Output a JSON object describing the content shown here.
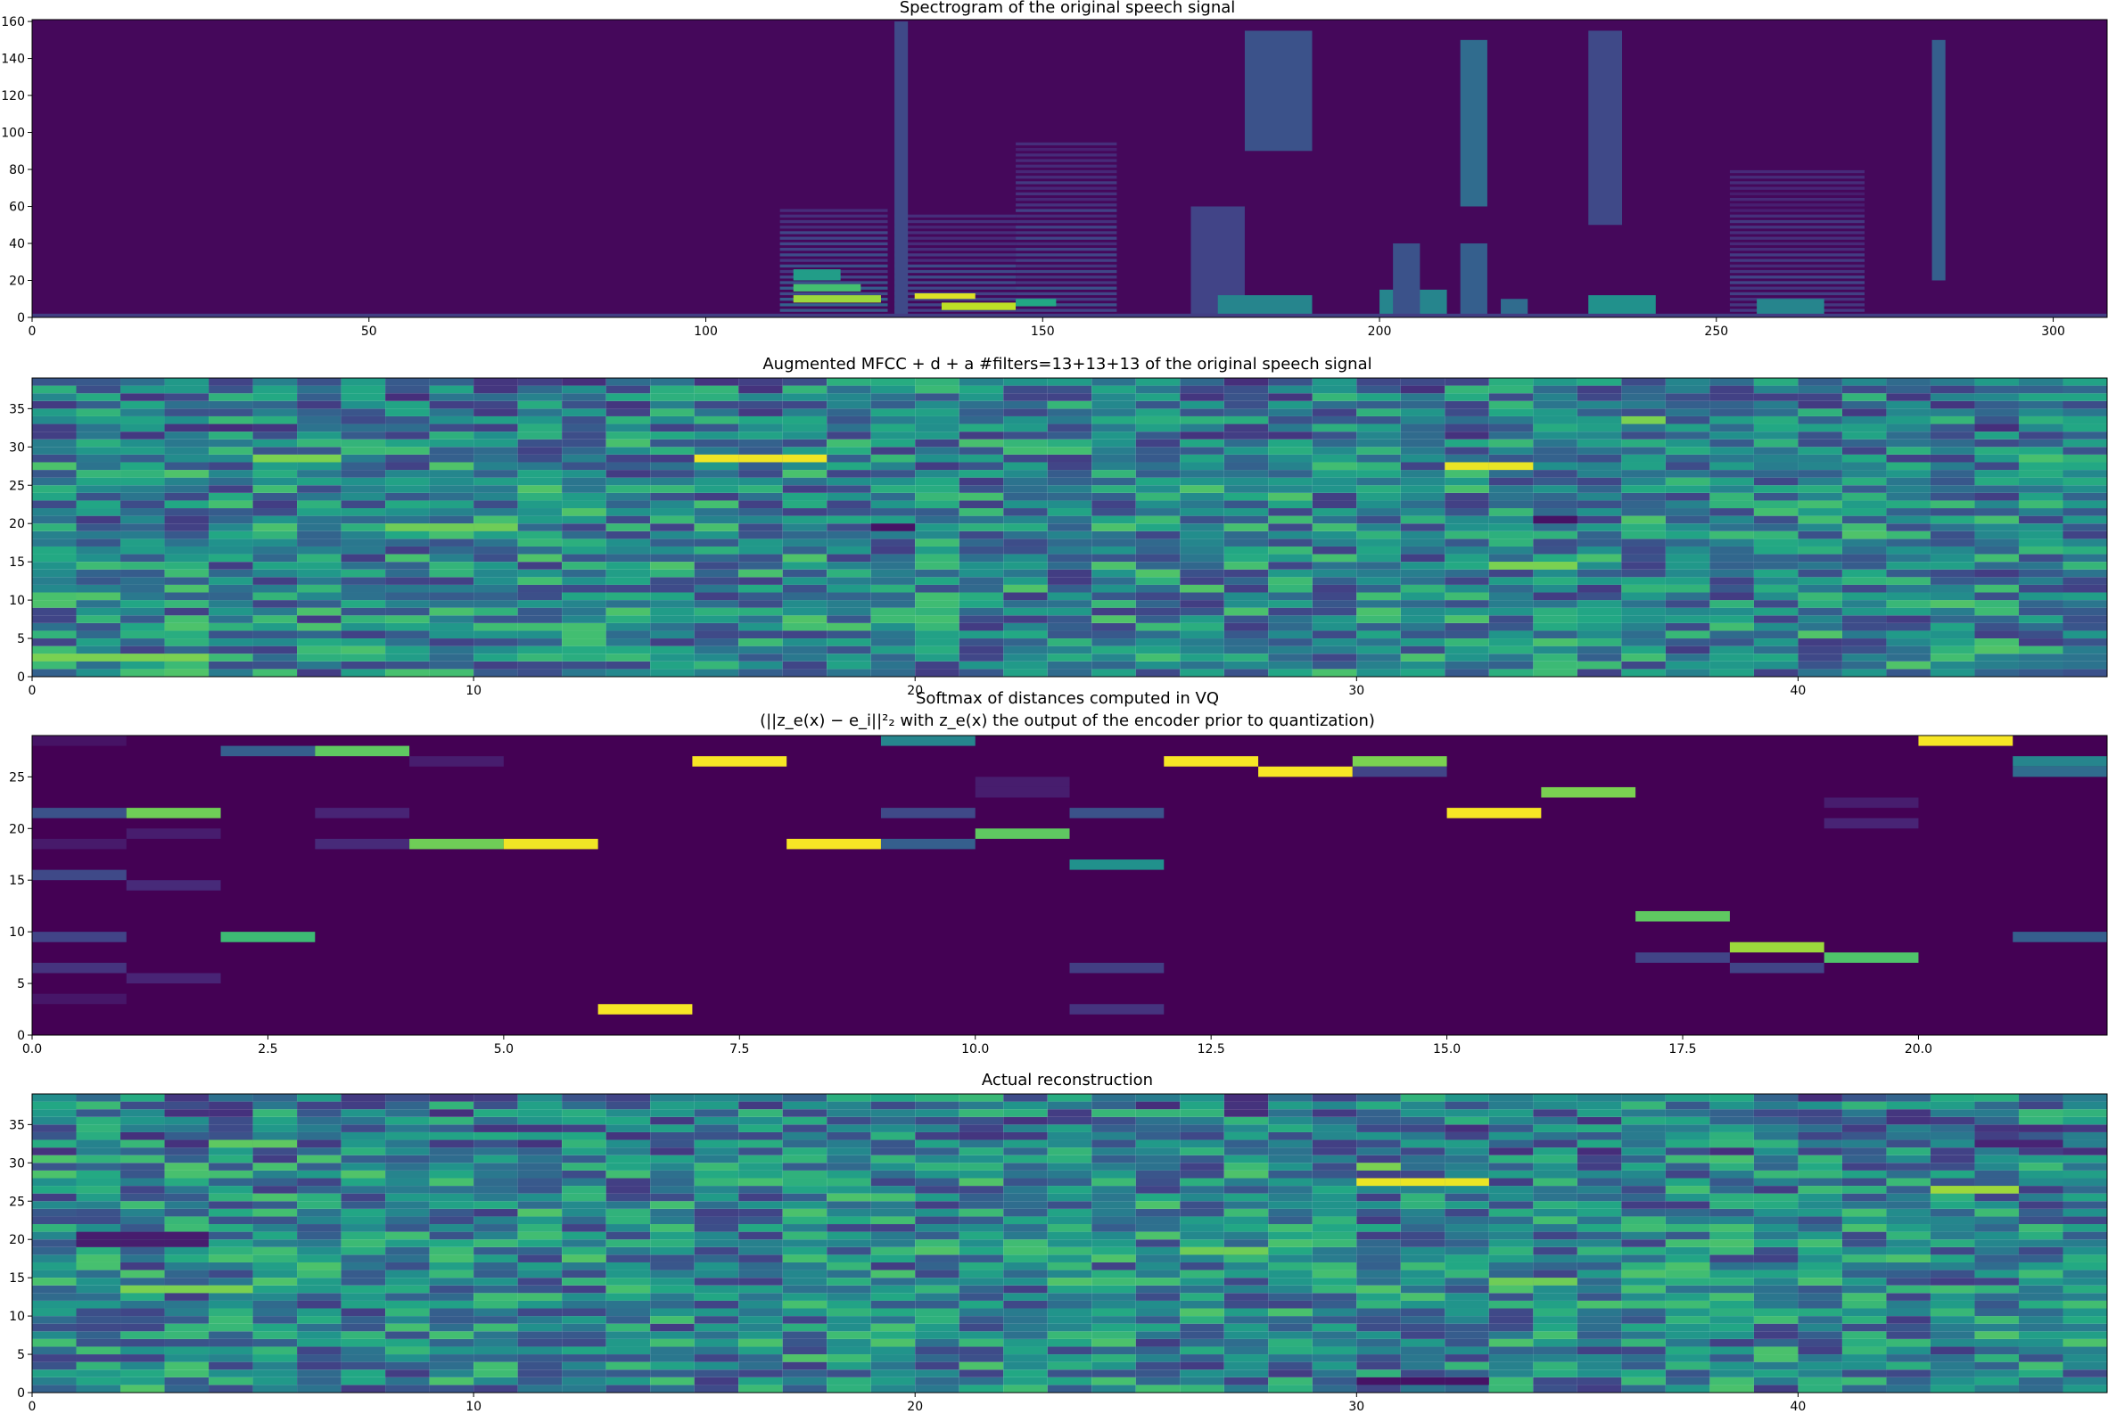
{
  "chart_data": [
    {
      "type": "heatmap",
      "title": "Spectrogram of the original speech signal",
      "xlim": [
        0,
        308
      ],
      "ylim": [
        0,
        161
      ],
      "xticks": [
        0,
        50,
        100,
        150,
        200,
        250,
        300
      ],
      "xtick_labels": [
        "0",
        "50",
        "100",
        "150",
        "200",
        "250",
        "300"
      ],
      "yticks": [
        0,
        20,
        40,
        60,
        80,
        100,
        120,
        140,
        160
      ],
      "ytick_labels": [
        "0",
        "20",
        "40",
        "60",
        "80",
        "100",
        "120",
        "140",
        "160"
      ],
      "colormap": "viridis",
      "background_value": 0.02,
      "regions": [
        {
          "x": [
            111,
            127
          ],
          "y": [
            0,
            60
          ],
          "intensity": 0.35,
          "harmonic": true
        },
        {
          "x": [
            113,
            126
          ],
          "y": [
            8,
            12
          ],
          "intensity": 0.85
        },
        {
          "x": [
            113,
            123
          ],
          "y": [
            14,
            18
          ],
          "intensity": 0.7
        },
        {
          "x": [
            113,
            120
          ],
          "y": [
            20,
            26
          ],
          "intensity": 0.55
        },
        {
          "x": [
            128,
            146
          ],
          "y": [
            0,
            55
          ],
          "intensity": 0.3,
          "harmonic": true
        },
        {
          "x": [
            131,
            140
          ],
          "y": [
            10,
            13
          ],
          "intensity": 0.95
        },
        {
          "x": [
            135,
            146
          ],
          "y": [
            4,
            8
          ],
          "intensity": 0.9
        },
        {
          "x": [
            128,
            130
          ],
          "y": [
            0,
            160
          ],
          "intensity": 0.22
        },
        {
          "x": [
            146,
            161
          ],
          "y": [
            0,
            95
          ],
          "intensity": 0.28,
          "harmonic": true
        },
        {
          "x": [
            146,
            152
          ],
          "y": [
            6,
            10
          ],
          "intensity": 0.6
        },
        {
          "x": [
            172,
            180
          ],
          "y": [
            0,
            60
          ],
          "intensity": 0.2
        },
        {
          "x": [
            176,
            190
          ],
          "y": [
            0,
            12
          ],
          "intensity": 0.45
        },
        {
          "x": [
            180,
            190
          ],
          "y": [
            90,
            155
          ],
          "intensity": 0.25
        },
        {
          "x": [
            200,
            210
          ],
          "y": [
            0,
            15
          ],
          "intensity": 0.45
        },
        {
          "x": [
            202,
            206
          ],
          "y": [
            0,
            40
          ],
          "intensity": 0.25
        },
        {
          "x": [
            212,
            216
          ],
          "y": [
            60,
            150
          ],
          "intensity": 0.35
        },
        {
          "x": [
            212,
            216
          ],
          "y": [
            0,
            40
          ],
          "intensity": 0.3
        },
        {
          "x": [
            218,
            222
          ],
          "y": [
            0,
            10
          ],
          "intensity": 0.35
        },
        {
          "x": [
            231,
            241
          ],
          "y": [
            0,
            12
          ],
          "intensity": 0.5
        },
        {
          "x": [
            231,
            236
          ],
          "y": [
            50,
            155
          ],
          "intensity": 0.22
        },
        {
          "x": [
            252,
            272
          ],
          "y": [
            0,
            80
          ],
          "intensity": 0.24,
          "harmonic": true
        },
        {
          "x": [
            256,
            266
          ],
          "y": [
            0,
            10
          ],
          "intensity": 0.45
        },
        {
          "x": [
            282,
            284
          ],
          "y": [
            20,
            150
          ],
          "intensity": 0.3
        },
        {
          "x": [
            0,
            308
          ],
          "y": [
            0,
            2
          ],
          "intensity": 0.18
        }
      ]
    },
    {
      "type": "heatmap",
      "title": "Augmented MFCC + d + a #filters=13+13+13 of the original speech signal",
      "xlim": [
        0,
        47
      ],
      "ylim": [
        0,
        39
      ],
      "xticks": [
        0,
        10,
        20,
        30,
        40
      ],
      "xtick_labels": [
        "0",
        "10",
        "20",
        "30",
        "40"
      ],
      "yticks": [
        0,
        5,
        10,
        15,
        20,
        25,
        30,
        35
      ],
      "ytick_labels": [
        "0",
        "5",
        "10",
        "15",
        "20",
        "25",
        "30",
        "35"
      ],
      "colormap": "viridis",
      "cols": 47,
      "rows": 39,
      "base_value": 0.45,
      "seed": 7,
      "highlights": [
        {
          "x": [
            15,
            18
          ],
          "y": [
            28,
            29
          ],
          "value": 0.98
        },
        {
          "x": [
            5,
            7
          ],
          "y": [
            28,
            29
          ],
          "value": 0.8
        },
        {
          "x": [
            32,
            34
          ],
          "y": [
            27,
            28
          ],
          "value": 0.97
        },
        {
          "x": [
            8,
            11
          ],
          "y": [
            19,
            20
          ],
          "value": 0.78
        },
        {
          "x": [
            0,
            4
          ],
          "y": [
            2,
            3
          ],
          "value": 0.8
        },
        {
          "x": [
            33,
            35
          ],
          "y": [
            14,
            15
          ],
          "value": 0.8
        },
        {
          "x": [
            36,
            37
          ],
          "y": [
            33,
            34
          ],
          "value": 0.8
        },
        {
          "x": [
            19,
            20
          ],
          "y": [
            19,
            20
          ],
          "value": 0.05
        },
        {
          "x": [
            34,
            35
          ],
          "y": [
            20,
            21
          ],
          "value": 0.05
        }
      ]
    },
    {
      "type": "heatmap",
      "title": "Softmax of distances computed in VQ",
      "subtitle": "(||z_e(x) − e_i||²₂ with z_e(x) the output of the encoder prior to quantization)",
      "xlim": [
        0,
        22
      ],
      "ylim": [
        0,
        29
      ],
      "xticks": [
        0,
        2.5,
        5,
        7.5,
        10,
        12.5,
        15,
        17.5,
        20
      ],
      "xtick_labels": [
        "0.0",
        "2.5",
        "5.0",
        "7.5",
        "10.0",
        "12.5",
        "15.0",
        "17.5",
        "20.0"
      ],
      "yticks": [
        0,
        5,
        10,
        15,
        20,
        25
      ],
      "ytick_labels": [
        "0",
        "5",
        "10",
        "15",
        "20",
        "25"
      ],
      "colormap": "viridis",
      "background_value": 0.0,
      "cells": [
        [
          0,
          21,
          0.25
        ],
        [
          0,
          15,
          0.22
        ],
        [
          0,
          9,
          0.2
        ],
        [
          0,
          6,
          0.15
        ],
        [
          0,
          3,
          0.06
        ],
        [
          0,
          28,
          0.05
        ],
        [
          0,
          18,
          0.07
        ],
        [
          1,
          21,
          0.78
        ],
        [
          1,
          14,
          0.12
        ],
        [
          1,
          19,
          0.08
        ],
        [
          1,
          5,
          0.1
        ],
        [
          2,
          9,
          0.68
        ],
        [
          2,
          27,
          0.3
        ],
        [
          3,
          27,
          0.75
        ],
        [
          3,
          21,
          0.1
        ],
        [
          3,
          18,
          0.12
        ],
        [
          4,
          18,
          0.78
        ],
        [
          4,
          26,
          0.08
        ],
        [
          5,
          18,
          0.98
        ],
        [
          6,
          2,
          0.99
        ],
        [
          7,
          26,
          0.99
        ],
        [
          8,
          18,
          0.99
        ],
        [
          9,
          28,
          0.45
        ],
        [
          9,
          18,
          0.3
        ],
        [
          9,
          21,
          0.22
        ],
        [
          10,
          19,
          0.75
        ],
        [
          10,
          24,
          0.08
        ],
        [
          10,
          23,
          0.08
        ],
        [
          11,
          16,
          0.5
        ],
        [
          11,
          21,
          0.25
        ],
        [
          11,
          6,
          0.18
        ],
        [
          11,
          2,
          0.15
        ],
        [
          12,
          26,
          0.99
        ],
        [
          13,
          25,
          0.99
        ],
        [
          14,
          26,
          0.8
        ],
        [
          14,
          25,
          0.2
        ],
        [
          15,
          21,
          0.99
        ],
        [
          16,
          23,
          0.8
        ],
        [
          17,
          11,
          0.75
        ],
        [
          17,
          7,
          0.2
        ],
        [
          18,
          8,
          0.85
        ],
        [
          18,
          6,
          0.2
        ],
        [
          19,
          7,
          0.72
        ],
        [
          19,
          22,
          0.08
        ],
        [
          19,
          20,
          0.1
        ],
        [
          20,
          28,
          0.99
        ],
        [
          21,
          26,
          0.45
        ],
        [
          21,
          25,
          0.35
        ],
        [
          21,
          9,
          0.3
        ]
      ]
    },
    {
      "type": "heatmap",
      "title": "Actual reconstruction",
      "xlim": [
        0,
        47
      ],
      "ylim": [
        0,
        39
      ],
      "xticks": [
        0,
        10,
        20,
        30,
        40
      ],
      "xtick_labels": [
        "0",
        "10",
        "20",
        "30",
        "40"
      ],
      "yticks": [
        0,
        5,
        10,
        15,
        20,
        25,
        30,
        35
      ],
      "ytick_labels": [
        "0",
        "5",
        "10",
        "15",
        "20",
        "25",
        "30",
        "35"
      ],
      "colormap": "viridis",
      "cols": 47,
      "rows": 39,
      "base_value": 0.45,
      "seed": 13,
      "highlights": [
        {
          "x": [
            30,
            33
          ],
          "y": [
            27,
            28
          ],
          "value": 0.97
        },
        {
          "x": [
            30,
            31
          ],
          "y": [
            29,
            30
          ],
          "value": 0.8
        },
        {
          "x": [
            2,
            5
          ],
          "y": [
            13,
            14
          ],
          "value": 0.8
        },
        {
          "x": [
            4,
            6
          ],
          "y": [
            32,
            33
          ],
          "value": 0.75
        },
        {
          "x": [
            43,
            45
          ],
          "y": [
            26,
            27
          ],
          "value": 0.85
        },
        {
          "x": [
            26,
            28
          ],
          "y": [
            18,
            19
          ],
          "value": 0.78
        },
        {
          "x": [
            33,
            35
          ],
          "y": [
            14,
            15
          ],
          "value": 0.78
        },
        {
          "x": [
            1,
            4
          ],
          "y": [
            19,
            21
          ],
          "value": 0.08
        },
        {
          "x": [
            30,
            33
          ],
          "y": [
            1,
            2
          ],
          "value": 0.05
        },
        {
          "x": [
            44,
            46
          ],
          "y": [
            32,
            33
          ],
          "value": 0.1
        }
      ]
    }
  ]
}
